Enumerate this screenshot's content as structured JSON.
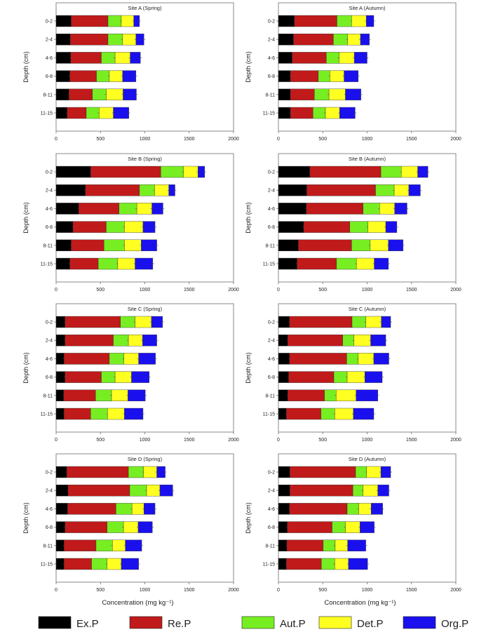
{
  "chart_data": {
    "type": "bar",
    "orientation": "horizontal",
    "stacked": true,
    "categories": [
      "0-2",
      "2-4",
      "4-6",
      "6-8",
      "8-11",
      "11-15"
    ],
    "xlabel": "Concentration (mg kg⁻¹)",
    "ylabel": "Depth (cm)",
    "xlim": [
      0,
      2000
    ],
    "xticks": [
      "0",
      "500",
      "1000",
      "1500",
      "2000"
    ],
    "legend": {
      "placement": "bottom",
      "entries": [
        "Ex.P",
        "Re.P",
        "Aut.P",
        "Det.P",
        "Org.P"
      ]
    },
    "colors": {
      "Ex.P": "#000000",
      "Re.P": "#c01a1a",
      "Aut.P": "#77ee22",
      "Det.P": "#ffff22",
      "Org.P": "#1a10ee"
    },
    "panels": [
      {
        "title": "Site A (Spring)",
        "series": [
          {
            "name": "Ex.P",
            "values": [
              170,
              160,
              165,
              155,
              145,
              125
            ]
          },
          {
            "name": "Re.P",
            "values": [
              415,
              425,
              345,
              300,
              265,
              215
            ]
          },
          {
            "name": "Aut.P",
            "values": [
              150,
              165,
              155,
              145,
              155,
              145
            ]
          },
          {
            "name": "Det.P",
            "values": [
              140,
              150,
              170,
              150,
              190,
              160
            ]
          },
          {
            "name": "Org.P",
            "values": [
              65,
              90,
              115,
              150,
              150,
              175
            ]
          }
        ]
      },
      {
        "title": "Site A (Autumn)",
        "series": [
          {
            "name": "Ex.P",
            "values": [
              180,
              170,
              155,
              135,
              135,
              135
            ]
          },
          {
            "name": "Re.P",
            "values": [
              480,
              450,
              385,
              315,
              270,
              255
            ]
          },
          {
            "name": "Aut.P",
            "values": [
              165,
              160,
              145,
              130,
              165,
              140
            ]
          },
          {
            "name": "Det.P",
            "values": [
              165,
              145,
              170,
              160,
              185,
              160
            ]
          },
          {
            "name": "Org.P",
            "values": [
              85,
              100,
              145,
              160,
              175,
              175
            ]
          }
        ]
      },
      {
        "title": "Site B (Spring)",
        "series": [
          {
            "name": "Ex.P",
            "values": [
              390,
              330,
              255,
              190,
              170,
              155
            ]
          },
          {
            "name": "Re.P",
            "values": [
              790,
              610,
              455,
              375,
              370,
              320
            ]
          },
          {
            "name": "Aut.P",
            "values": [
              255,
              170,
              200,
              205,
              230,
              220
            ]
          },
          {
            "name": "Det.P",
            "values": [
              165,
              160,
              170,
              210,
              190,
              195
            ]
          },
          {
            "name": "Org.P",
            "values": [
              75,
              70,
              125,
              135,
              175,
              200
            ]
          }
        ]
      },
      {
        "title": "Site B (Autumn)",
        "series": [
          {
            "name": "Ex.P",
            "values": [
              355,
              320,
              315,
              285,
              225,
              210
            ]
          },
          {
            "name": "Re.P",
            "values": [
              800,
              775,
              640,
              520,
              600,
              445
            ]
          },
          {
            "name": "Aut.P",
            "values": [
              230,
              210,
              185,
              205,
              210,
              225
            ]
          },
          {
            "name": "Det.P",
            "values": [
              185,
              165,
              170,
              200,
              205,
              200
            ]
          },
          {
            "name": "Org.P",
            "values": [
              115,
              130,
              140,
              125,
              165,
              160
            ]
          }
        ]
      },
      {
        "title": "Site C (Spring)",
        "series": [
          {
            "name": "Ex.P",
            "values": [
              100,
              100,
              90,
              100,
              85,
              90
            ]
          },
          {
            "name": "Re.P",
            "values": [
              625,
              545,
              510,
              410,
              360,
              300
            ]
          },
          {
            "name": "Aut.P",
            "values": [
              165,
              170,
              165,
              155,
              180,
              190
            ]
          },
          {
            "name": "Det.P",
            "values": [
              185,
              160,
              165,
              185,
              185,
              190
            ]
          },
          {
            "name": "Org.P",
            "values": [
              125,
              160,
              190,
              200,
              195,
              210
            ]
          }
        ]
      },
      {
        "title": "Site C (Autumn)",
        "series": [
          {
            "name": "Ex.P",
            "values": [
              125,
              105,
              125,
              115,
              105,
              90
            ]
          },
          {
            "name": "Re.P",
            "values": [
              705,
              620,
              645,
              510,
              415,
              390
            ]
          },
          {
            "name": "Aut.P",
            "values": [
              155,
              125,
              130,
              150,
              130,
              155
            ]
          },
          {
            "name": "Det.P",
            "values": [
              175,
              190,
              175,
              200,
              225,
              210
            ]
          },
          {
            "name": "Org.P",
            "values": [
              105,
              170,
              170,
              195,
              245,
              230
            ]
          }
        ]
      },
      {
        "title": "Site D (Spring)",
        "series": [
          {
            "name": "Ex.P",
            "values": [
              120,
              135,
              130,
              100,
              90,
              90
            ]
          },
          {
            "name": "Re.P",
            "values": [
              695,
              695,
              545,
              475,
              360,
              310
            ]
          },
          {
            "name": "Aut.P",
            "values": [
              170,
              190,
              180,
              185,
              185,
              175
            ]
          },
          {
            "name": "Det.P",
            "values": [
              150,
              150,
              135,
              165,
              145,
              160
            ]
          },
          {
            "name": "Org.P",
            "values": [
              95,
              145,
              125,
              160,
              185,
              195
            ]
          }
        ]
      },
      {
        "title": "Site D (Autumn)",
        "series": [
          {
            "name": "Ex.P",
            "values": [
              130,
              130,
              125,
              100,
              95,
              90
            ]
          },
          {
            "name": "Re.P",
            "values": [
              740,
              710,
              650,
              505,
              410,
              395
            ]
          },
          {
            "name": "Aut.P",
            "values": [
              125,
              115,
              130,
              150,
              135,
              150
            ]
          },
          {
            "name": "Det.P",
            "values": [
              160,
              165,
              140,
              165,
              140,
              155
            ]
          },
          {
            "name": "Org.P",
            "values": [
              110,
              125,
              130,
              160,
              205,
              215
            ]
          }
        ]
      }
    ]
  }
}
